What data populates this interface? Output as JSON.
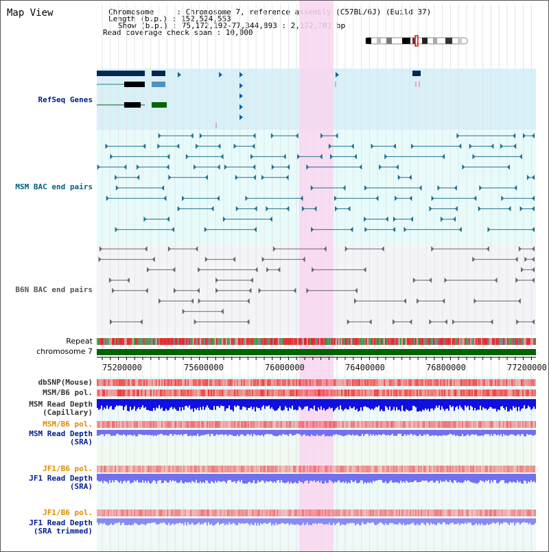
{
  "page": {
    "title": "Map View"
  },
  "info": {
    "chromosome_line": "Chromosome     : Chromosome 7, reference assembly (C57BL/6J) (Build 37)",
    "length_line": "Length (b.p.) : 152,524,553",
    "show_line": "Show (b.p.) : 75,172,192-77,344,893 : 2,172,702 bp",
    "coverage_line": "Read coverage check span : 10,000"
  },
  "tracks": {
    "refseq_genes": "RefSeq Genes",
    "msm_bac": "MSM BAC end pairs",
    "b6n_bac": "B6N BAC end pairs",
    "repeat": "Repeat",
    "chromosome": "chromosome 7",
    "dbsnp": "dbSNP(Mouse)",
    "msm_b6_pol_1": "MSM/B6 pol.",
    "msm_read_depth_cap": "MSM Read Depth\n(Capillary)",
    "msm_b6_pol_2": "MSM/B6 pol.",
    "msm_read_depth_sra": "MSM Read Depth\n(SRA)",
    "jf1_b6_pol_1": "JF1/B6 pol.",
    "jf1_read_depth_sra": "JF1 Read Depth\n(SRA)",
    "jf1_b6_pol_2": "JF1/B6 pol.",
    "jf1_read_depth_trim": "JF1 Read Depth\n(SRA trimmed)"
  },
  "axis": {
    "ticks": [
      "75200000",
      "75600000",
      "76000000",
      "76400000",
      "76800000",
      "77200000"
    ]
  },
  "colors": {
    "highlight": "#f9d6f0",
    "refseq_bg": "#d8f0f8",
    "msm_bg": "#e8fbfb",
    "b6n_bg": "#f4f4f8",
    "chromosome_bar": "#006400",
    "read_depth_dark": "#1010e0",
    "read_depth_light": "#7070f0",
    "pol_red": "#f03030"
  }
}
